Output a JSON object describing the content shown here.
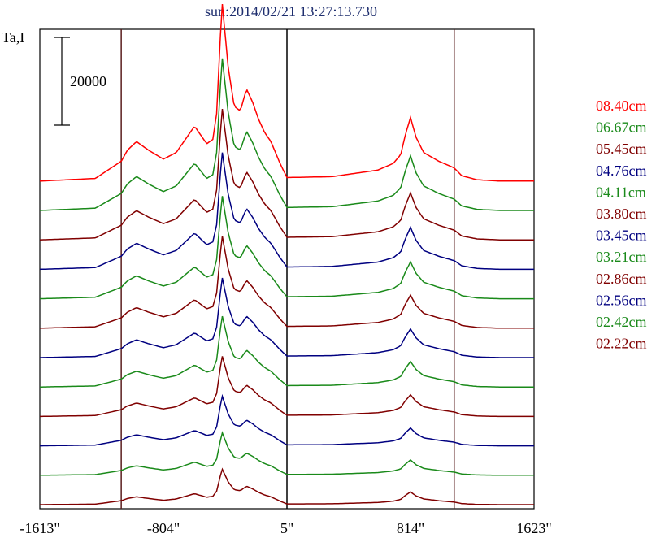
{
  "chart_data": {
    "type": "line",
    "title": "sun:2014/02/21 13:27:13.730",
    "ylabel": "Ta,I",
    "scale_bar_label": "20000",
    "x_ticks": [
      "-1613\"",
      "-804\"",
      "5\"",
      "814\"",
      "1623\""
    ],
    "x_range": [
      -1613,
      1623
    ],
    "vertical_markers": [
      -1080,
      5,
      1100
    ],
    "grid": false,
    "legend_placement": "right",
    "series": [
      {
        "name": "08.40cm",
        "color": "#ff0000",
        "scale": 1.0,
        "offset": 12
      },
      {
        "name": "06.67cm",
        "color": "#1a8a1a",
        "scale": 0.86,
        "offset": 11
      },
      {
        "name": "05.45cm",
        "color": "#800000",
        "scale": 0.74,
        "offset": 10
      },
      {
        "name": "04.76cm",
        "color": "#000080",
        "scale": 0.66,
        "offset": 9
      },
      {
        "name": "04.11cm",
        "color": "#1a8a1a",
        "scale": 0.58,
        "offset": 8
      },
      {
        "name": "03.80cm",
        "color": "#800000",
        "scale": 0.52,
        "offset": 7
      },
      {
        "name": "03.45cm",
        "color": "#000080",
        "scale": 0.45,
        "offset": 6
      },
      {
        "name": "03.21cm",
        "color": "#1a8a1a",
        "scale": 0.4,
        "offset": 5
      },
      {
        "name": "02.86cm",
        "color": "#800000",
        "scale": 0.34,
        "offset": 4
      },
      {
        "name": "02.56cm",
        "color": "#000080",
        "scale": 0.28,
        "offset": 3
      },
      {
        "name": "02.42cm",
        "color": "#1a8a1a",
        "scale": 0.24,
        "offset": 2
      },
      {
        "name": "02.22cm",
        "color": "#800000",
        "scale": 0.2,
        "offset": 1
      }
    ],
    "reference_profile": {
      "x": [
        -1613,
        -1250,
        -1080,
        -1040,
        -980,
        -900,
        -804,
        -720,
        -600,
        -520,
        -480,
        -455,
        -420,
        -380,
        -340,
        -300,
        -260,
        -220,
        -180,
        -140,
        -100,
        -40,
        5,
        300,
        600,
        700,
        750,
        780,
        814,
        850,
        900,
        1000,
        1100,
        1150,
        1250,
        1400,
        1623
      ],
      "y": [
        0,
        600,
        4500,
        7000,
        9000,
        7000,
        5000,
        6500,
        12500,
        8500,
        9500,
        15500,
        41000,
        26000,
        17000,
        16000,
        21000,
        18000,
        14000,
        11000,
        9000,
        4000,
        800,
        1000,
        2500,
        4000,
        6000,
        10500,
        14500,
        10000,
        6500,
        4500,
        3000,
        1200,
        300,
        0,
        0
      ]
    }
  }
}
